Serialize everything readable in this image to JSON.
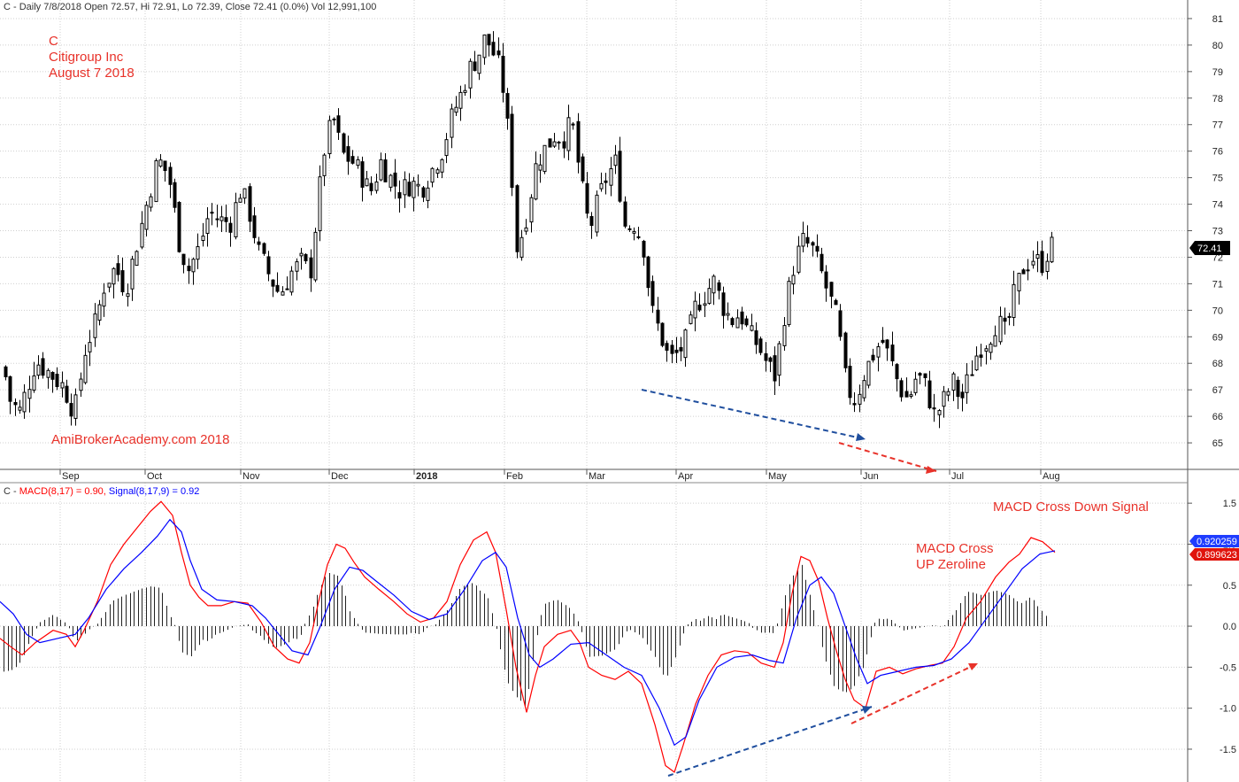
{
  "header": {
    "price_line": "C - Daily 7/8/2018 Open 72.57, Hi 72.91, Lo 72.39, Close 72.41 (0.0%) Vol 12,991,100",
    "macd_prefix": "C - ",
    "macd_label": "MACD(8,17) = 0.90, ",
    "signal_label": "Signal(8,17,9) = 0.92"
  },
  "annotations": {
    "ticker": "C",
    "company": "Citigroup Inc",
    "date": "August 7 2018",
    "watermark": "AmiBrokerAcademy.com  2018",
    "macd_cross_down": "MACD Cross Down Signal",
    "macd_cross_up_1": "MACD Cross",
    "macd_cross_up_2": "UP Zeroline"
  },
  "price_tag": "72.41",
  "signal_tag": "0.920259",
  "macd_tag": "0.899623",
  "colors": {
    "grid": "#cfcfcf",
    "candle": "#000000",
    "macd": "#ff0000",
    "signal": "#0000ff",
    "annotation": "#e8322a",
    "trend_blue": "#1f4e9e",
    "trend_red": "#e8322a",
    "tag_bg": "#000000",
    "signal_tag_bg": "#1f3dff",
    "macd_tag_bg": "#e0140c"
  },
  "chart_data": [
    {
      "type": "candlestick",
      "title": "",
      "x_months": [
        "Sep",
        "Oct",
        "Nov",
        "Dec",
        "2018",
        "Feb",
        "Mar",
        "Apr",
        "May",
        "Jun",
        "Jul",
        "Aug"
      ],
      "y_ticks": [
        65,
        66,
        67,
        68,
        69,
        70,
        71,
        72,
        73,
        74,
        75,
        76,
        77,
        78,
        79,
        80,
        81
      ],
      "ylim": [
        64.0,
        81.7
      ],
      "last_close": 72.41,
      "grid": true,
      "close_path": [
        [
          0,
          68.5
        ],
        [
          12,
          66.5
        ],
        [
          22,
          66.2
        ],
        [
          40,
          68.1
        ],
        [
          60,
          67.5
        ],
        [
          72,
          67.1
        ],
        [
          84,
          66.1
        ],
        [
          96,
          68.5
        ],
        [
          108,
          69.6
        ],
        [
          118,
          71.0
        ],
        [
          130,
          71.6
        ],
        [
          142,
          70.8
        ],
        [
          155,
          72.6
        ],
        [
          166,
          74.1
        ],
        [
          178,
          75.7
        ],
        [
          190,
          75.1
        ],
        [
          202,
          72.6
        ],
        [
          212,
          71.5
        ],
        [
          224,
          72.3
        ],
        [
          236,
          73.7
        ],
        [
          248,
          73.4
        ],
        [
          260,
          73.3
        ],
        [
          272,
          74.6
        ],
        [
          282,
          73.6
        ],
        [
          292,
          72.2
        ],
        [
          304,
          71.3
        ],
        [
          316,
          70.6
        ],
        [
          328,
          71.4
        ],
        [
          340,
          71.8
        ],
        [
          350,
          71.4
        ],
        [
          358,
          73.8
        ],
        [
          366,
          76.0
        ],
        [
          376,
          77.3
        ],
        [
          386,
          75.9
        ],
        [
          398,
          75.6
        ],
        [
          408,
          75.1
        ],
        [
          418,
          74.4
        ],
        [
          430,
          75.6
        ],
        [
          442,
          74.9
        ],
        [
          452,
          74.5
        ],
        [
          464,
          74.8
        ],
        [
          476,
          74.6
        ],
        [
          488,
          75.3
        ],
        [
          500,
          76.1
        ],
        [
          510,
          77.3
        ],
        [
          520,
          78.1
        ],
        [
          530,
          79.1
        ],
        [
          540,
          79.6
        ],
        [
          548,
          80.3
        ],
        [
          556,
          79.8
        ],
        [
          566,
          78.9
        ],
        [
          576,
          76.1
        ],
        [
          584,
          72.2
        ],
        [
          594,
          73.5
        ],
        [
          606,
          75.6
        ],
        [
          616,
          76.1
        ],
        [
          626,
          76.6
        ],
        [
          636,
          76.5
        ],
        [
          646,
          77.1
        ],
        [
          656,
          74.8
        ],
        [
          666,
          73.0
        ],
        [
          676,
          74.2
        ],
        [
          686,
          75.1
        ],
        [
          696,
          75.6
        ],
        [
          706,
          73.1
        ],
        [
          716,
          73.3
        ],
        [
          726,
          72.6
        ],
        [
          736,
          70.0
        ],
        [
          746,
          69.1
        ],
        [
          756,
          68.1
        ],
        [
          766,
          68.4
        ],
        [
          776,
          68.9
        ],
        [
          786,
          70.2
        ],
        [
          796,
          70.6
        ],
        [
          806,
          71.1
        ],
        [
          816,
          70.2
        ],
        [
          826,
          69.6
        ],
        [
          836,
          69.9
        ],
        [
          846,
          69.1
        ],
        [
          856,
          68.7
        ],
        [
          866,
          68.0
        ],
        [
          876,
          67.5
        ],
        [
          886,
          69.9
        ],
        [
          896,
          71.6
        ],
        [
          906,
          72.6
        ],
        [
          916,
          72.4
        ],
        [
          926,
          71.6
        ],
        [
          936,
          70.6
        ],
        [
          946,
          69.6
        ],
        [
          956,
          67.1
        ],
        [
          966,
          66.6
        ],
        [
          976,
          67.6
        ],
        [
          986,
          68.3
        ],
        [
          996,
          68.9
        ],
        [
          1006,
          68.1
        ],
        [
          1016,
          67.1
        ],
        [
          1026,
          66.6
        ],
        [
          1036,
          67.6
        ],
        [
          1046,
          67.1
        ],
        [
          1056,
          66.0
        ],
        [
          1066,
          66.6
        ],
        [
          1076,
          67.3
        ],
        [
          1086,
          66.6
        ],
        [
          1096,
          67.6
        ],
        [
          1106,
          68.6
        ],
        [
          1116,
          68.9
        ],
        [
          1126,
          69.6
        ],
        [
          1136,
          69.1
        ],
        [
          1146,
          70.6
        ],
        [
          1156,
          71.6
        ],
        [
          1166,
          72.0
        ],
        [
          1176,
          71.7
        ],
        [
          1186,
          72.4
        ],
        [
          1193,
          72.41
        ]
      ]
    },
    {
      "type": "line",
      "title": "",
      "y_ticks": [
        1.5,
        1.0,
        0.5,
        0.0,
        -0.5,
        -1.0,
        -1.5
      ],
      "ylim": [
        -1.9,
        1.75
      ],
      "grid": true,
      "series": [
        {
          "name": "MACD(8,17)",
          "color": "#ff0000",
          "values": [
            [
              0,
              -0.15
            ],
            [
              12,
              -0.25
            ],
            [
              25,
              -0.35
            ],
            [
              40,
              -0.2
            ],
            [
              60,
              -0.05
            ],
            [
              75,
              -0.1
            ],
            [
              85,
              -0.25
            ],
            [
              95,
              -0.05
            ],
            [
              110,
              0.3
            ],
            [
              125,
              0.75
            ],
            [
              140,
              1.0
            ],
            [
              155,
              1.2
            ],
            [
              170,
              1.4
            ],
            [
              182,
              1.52
            ],
            [
              195,
              1.35
            ],
            [
              205,
              0.9
            ],
            [
              215,
              0.5
            ],
            [
              225,
              0.35
            ],
            [
              235,
              0.25
            ],
            [
              250,
              0.25
            ],
            [
              265,
              0.3
            ],
            [
              280,
              0.28
            ],
            [
              295,
              0.05
            ],
            [
              310,
              -0.25
            ],
            [
              325,
              -0.4
            ],
            [
              338,
              -0.45
            ],
            [
              350,
              -0.2
            ],
            [
              360,
              0.3
            ],
            [
              370,
              0.75
            ],
            [
              380,
              1.0
            ],
            [
              390,
              0.95
            ],
            [
              400,
              0.78
            ],
            [
              412,
              0.6
            ],
            [
              428,
              0.45
            ],
            [
              445,
              0.3
            ],
            [
              460,
              0.15
            ],
            [
              475,
              0.05
            ],
            [
              490,
              0.1
            ],
            [
              505,
              0.3
            ],
            [
              520,
              0.75
            ],
            [
              535,
              1.05
            ],
            [
              550,
              1.15
            ],
            [
              560,
              0.9
            ],
            [
              572,
              0.2
            ],
            [
              583,
              -0.5
            ],
            [
              595,
              -1.05
            ],
            [
              605,
              -0.6
            ],
            [
              615,
              -0.25
            ],
            [
              630,
              -0.1
            ],
            [
              645,
              -0.05
            ],
            [
              655,
              -0.2
            ],
            [
              665,
              -0.5
            ],
            [
              680,
              -0.6
            ],
            [
              695,
              -0.65
            ],
            [
              710,
              -0.55
            ],
            [
              725,
              -0.7
            ],
            [
              740,
              -1.2
            ],
            [
              752,
              -1.7
            ],
            [
              762,
              -1.78
            ],
            [
              772,
              -1.45
            ],
            [
              786,
              -0.95
            ],
            [
              800,
              -0.6
            ],
            [
              815,
              -0.35
            ],
            [
              830,
              -0.3
            ],
            [
              845,
              -0.32
            ],
            [
              860,
              -0.45
            ],
            [
              875,
              -0.5
            ],
            [
              885,
              -0.2
            ],
            [
              895,
              0.4
            ],
            [
              905,
              0.85
            ],
            [
              915,
              0.8
            ],
            [
              925,
              0.55
            ],
            [
              935,
              0.1
            ],
            [
              945,
              -0.3
            ],
            [
              955,
              -0.65
            ],
            [
              965,
              -0.9
            ],
            [
              978,
              -1.0
            ],
            [
              990,
              -0.55
            ],
            [
              1005,
              -0.5
            ],
            [
              1020,
              -0.58
            ],
            [
              1035,
              -0.52
            ],
            [
              1050,
              -0.48
            ],
            [
              1065,
              -0.45
            ],
            [
              1078,
              -0.25
            ],
            [
              1092,
              0.1
            ],
            [
              1108,
              0.3
            ],
            [
              1125,
              0.6
            ],
            [
              1140,
              0.78
            ],
            [
              1152,
              0.88
            ],
            [
              1165,
              1.08
            ],
            [
              1178,
              1.03
            ],
            [
              1192,
              0.9
            ]
          ]
        },
        {
          "name": "Signal(8,17,9)",
          "color": "#0000ff",
          "values": [
            [
              0,
              0.3
            ],
            [
              15,
              0.15
            ],
            [
              30,
              -0.1
            ],
            [
              45,
              -0.2
            ],
            [
              65,
              -0.15
            ],
            [
              85,
              -0.1
            ],
            [
              100,
              0.1
            ],
            [
              120,
              0.45
            ],
            [
              140,
              0.7
            ],
            [
              160,
              0.9
            ],
            [
              178,
              1.1
            ],
            [
              192,
              1.3
            ],
            [
              205,
              1.15
            ],
            [
              215,
              0.8
            ],
            [
              228,
              0.45
            ],
            [
              245,
              0.32
            ],
            [
              265,
              0.3
            ],
            [
              285,
              0.25
            ],
            [
              300,
              0.1
            ],
            [
              315,
              -0.1
            ],
            [
              330,
              -0.3
            ],
            [
              348,
              -0.35
            ],
            [
              362,
              0.0
            ],
            [
              378,
              0.45
            ],
            [
              395,
              0.72
            ],
            [
              410,
              0.68
            ],
            [
              425,
              0.55
            ],
            [
              445,
              0.38
            ],
            [
              465,
              0.18
            ],
            [
              485,
              0.08
            ],
            [
              505,
              0.15
            ],
            [
              525,
              0.45
            ],
            [
              545,
              0.8
            ],
            [
              560,
              0.9
            ],
            [
              572,
              0.72
            ],
            [
              585,
              0.1
            ],
            [
              598,
              -0.35
            ],
            [
              610,
              -0.5
            ],
            [
              625,
              -0.4
            ],
            [
              645,
              -0.22
            ],
            [
              665,
              -0.2
            ],
            [
              685,
              -0.35
            ],
            [
              705,
              -0.5
            ],
            [
              725,
              -0.6
            ],
            [
              745,
              -1.0
            ],
            [
              762,
              -1.45
            ],
            [
              775,
              -1.35
            ],
            [
              790,
              -0.9
            ],
            [
              810,
              -0.5
            ],
            [
              830,
              -0.38
            ],
            [
              850,
              -0.35
            ],
            [
              870,
              -0.42
            ],
            [
              885,
              -0.45
            ],
            [
              900,
              0.1
            ],
            [
              915,
              0.5
            ],
            [
              928,
              0.6
            ],
            [
              942,
              0.4
            ],
            [
              955,
              0.0
            ],
            [
              968,
              -0.4
            ],
            [
              980,
              -0.7
            ],
            [
              995,
              -0.6
            ],
            [
              1015,
              -0.55
            ],
            [
              1035,
              -0.5
            ],
            [
              1055,
              -0.48
            ],
            [
              1075,
              -0.4
            ],
            [
              1095,
              -0.2
            ],
            [
              1115,
              0.1
            ],
            [
              1135,
              0.4
            ],
            [
              1155,
              0.7
            ],
            [
              1175,
              0.88
            ],
            [
              1192,
              0.92
            ]
          ]
        }
      ]
    }
  ]
}
